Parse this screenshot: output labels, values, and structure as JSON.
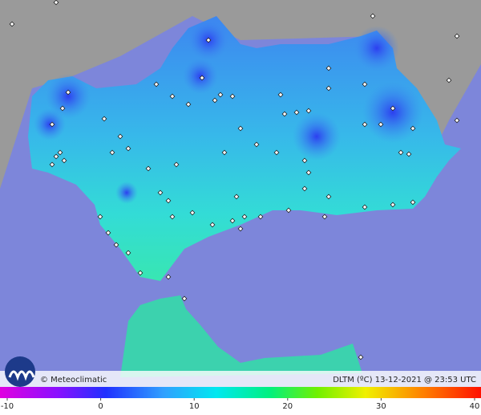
{
  "footer": {
    "credit": "© Meteoclimatic",
    "caption": "DLTM (ºC) 13-12-2021 @ 23:53 UTC"
  },
  "legend": {
    "ticks": [
      -10,
      0,
      10,
      20,
      30,
      40
    ]
  }
}
